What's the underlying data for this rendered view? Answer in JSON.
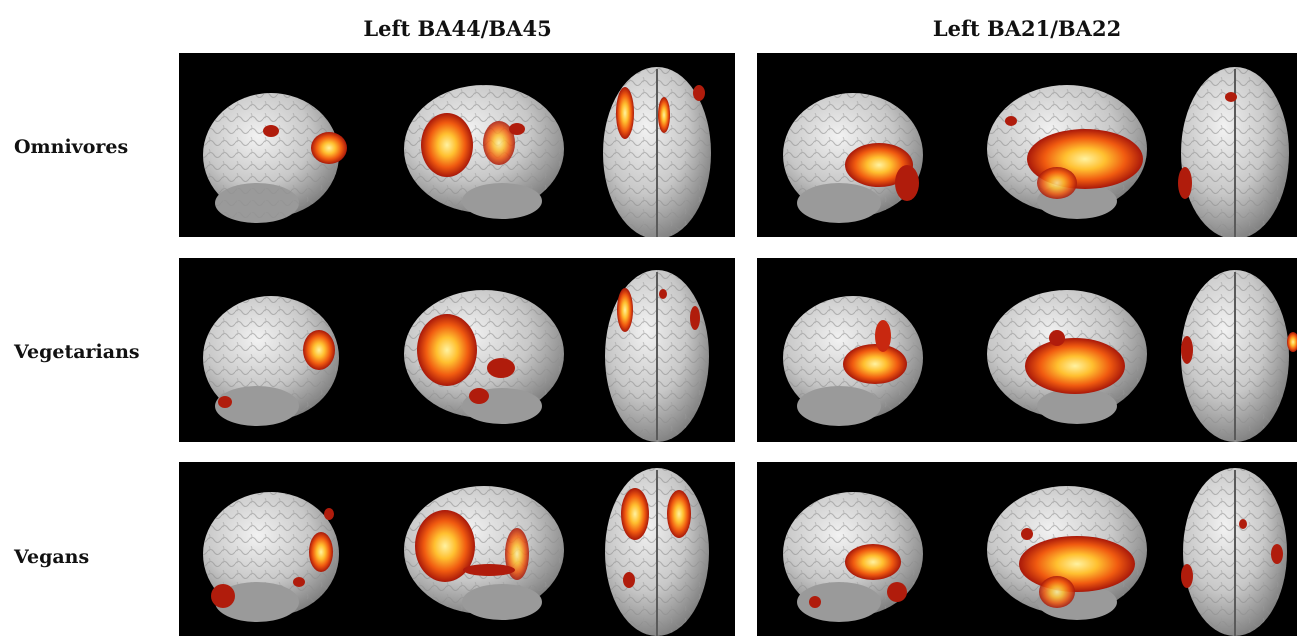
{
  "columns": [
    {
      "title": "Left BA44/BA45"
    },
    {
      "title": "Left BA21/BA22"
    }
  ],
  "rows": [
    {
      "label": "Omnivores"
    },
    {
      "label": "Vegetarians"
    },
    {
      "label": "Vegans"
    }
  ],
  "colors": {
    "panel_background": "#000000",
    "brain_surface": "#d4d4d4",
    "activation_low": "#b01c0c",
    "activation_mid": "#f06010",
    "activation_high": "#ffe46a"
  },
  "views": [
    "left-lateral",
    "right-lateral",
    "dorsal"
  ]
}
